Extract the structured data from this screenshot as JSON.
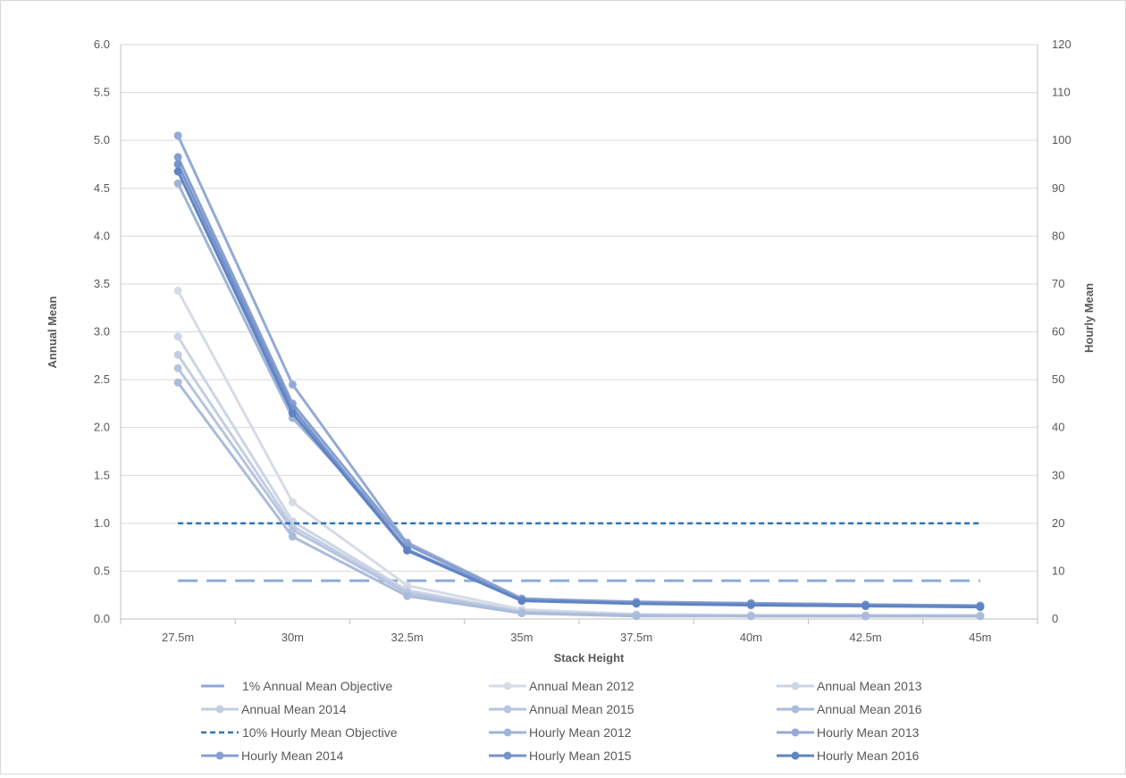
{
  "chart_data": {
    "type": "line",
    "x_title": "Stack Height",
    "y_left_title": "Annual Mean",
    "y_right_title": "Hourly Mean",
    "categories": [
      "27.5m",
      "30m",
      "32.5m",
      "35m",
      "37.5m",
      "40m",
      "42.5m",
      "45m"
    ],
    "y_left_range": [
      0,
      6.0
    ],
    "y_left_ticks": [
      "0.0",
      "0.5",
      "1.0",
      "1.5",
      "2.0",
      "2.5",
      "3.0",
      "3.5",
      "4.0",
      "4.5",
      "5.0",
      "5.5",
      "6.0"
    ],
    "y_right_range": [
      0,
      120
    ],
    "y_right_ticks": [
      "0",
      "10",
      "20",
      "30",
      "40",
      "50",
      "60",
      "70",
      "80",
      "90",
      "100",
      "110",
      "120"
    ],
    "grid": true,
    "legend_position": "bottom",
    "series": [
      {
        "name": "1% Annual Mean Objective",
        "axis": "left",
        "style": "long-dash",
        "marker": false,
        "color": "#8eaadb",
        "values": [
          0.4,
          0.4,
          0.4,
          0.4,
          0.4,
          0.4,
          0.4,
          0.4
        ]
      },
      {
        "name": "Annual Mean 2012",
        "axis": "left",
        "style": "solid",
        "marker": true,
        "color": "#d6dce5",
        "values": [
          3.43,
          1.22,
          0.35,
          0.1,
          0.05,
          0.04,
          0.04,
          0.04
        ]
      },
      {
        "name": "Annual Mean 2013",
        "axis": "left",
        "style": "solid",
        "marker": true,
        "color": "#ccd5e5",
        "values": [
          2.95,
          1.02,
          0.3,
          0.08,
          0.04,
          0.03,
          0.03,
          0.03
        ]
      },
      {
        "name": "Annual Mean 2014",
        "axis": "left",
        "style": "solid",
        "marker": true,
        "color": "#c3cde3",
        "values": [
          2.76,
          0.97,
          0.28,
          0.07,
          0.04,
          0.03,
          0.03,
          0.03
        ]
      },
      {
        "name": "Annual Mean 2015",
        "axis": "left",
        "style": "solid",
        "marker": true,
        "color": "#b7c4df",
        "values": [
          2.62,
          0.93,
          0.27,
          0.07,
          0.04,
          0.03,
          0.03,
          0.03
        ]
      },
      {
        "name": "Annual Mean 2016",
        "axis": "left",
        "style": "solid",
        "marker": true,
        "color": "#abbbdb",
        "values": [
          2.47,
          0.86,
          0.24,
          0.06,
          0.03,
          0.03,
          0.03,
          0.03
        ]
      },
      {
        "name": "10% Hourly Mean Objective",
        "axis": "right",
        "style": "short-dash",
        "marker": false,
        "color": "#2e75b6",
        "values": [
          20,
          20,
          20,
          20,
          20,
          20,
          20,
          20
        ]
      },
      {
        "name": "Hourly Mean 2012",
        "axis": "right",
        "style": "solid",
        "marker": true,
        "color": "#a0b3d9",
        "values": [
          91,
          42,
          16,
          4.3,
          3.4,
          3.1,
          2.8,
          2.6
        ]
      },
      {
        "name": "Hourly Mean 2013",
        "axis": "right",
        "style": "solid",
        "marker": true,
        "color": "#94aad6",
        "values": [
          101,
          49,
          15.8,
          4.2,
          3.6,
          3.3,
          3.0,
          2.8
        ]
      },
      {
        "name": "Hourly Mean 2014",
        "axis": "right",
        "style": "solid",
        "marker": true,
        "color": "#879fd0",
        "values": [
          96.5,
          45,
          15.5,
          4.1,
          3.5,
          3.3,
          3.0,
          2.8
        ]
      },
      {
        "name": "Hourly Mean 2015",
        "axis": "right",
        "style": "solid",
        "marker": true,
        "color": "#7593cb",
        "values": [
          95,
          44,
          14.5,
          4.0,
          3.3,
          3.1,
          2.9,
          2.7
        ]
      },
      {
        "name": "Hourly Mean 2016",
        "axis": "right",
        "style": "solid",
        "marker": true,
        "color": "#5f84c4",
        "values": [
          93.5,
          43,
          14.3,
          3.8,
          3.2,
          2.9,
          2.7,
          2.5
        ]
      }
    ]
  }
}
